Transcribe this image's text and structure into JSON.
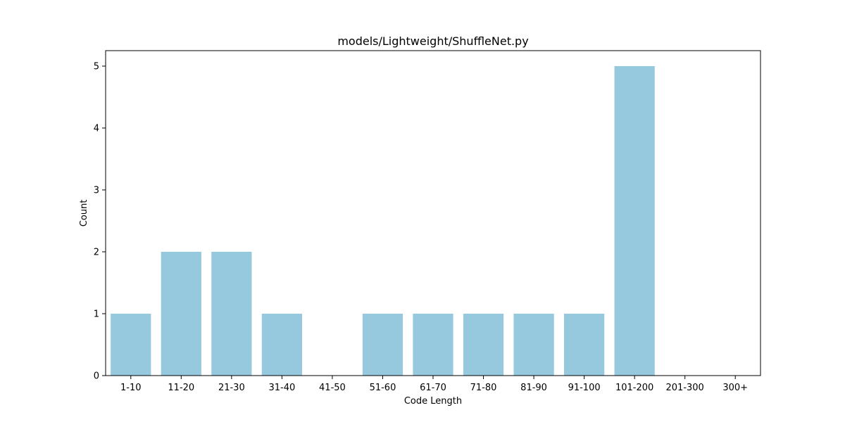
{
  "chart_data": {
    "type": "bar",
    "title": "models/Lightweight/ShuffleNet.py",
    "xlabel": "Code Length",
    "ylabel": "Count",
    "categories": [
      "1-10",
      "11-20",
      "21-30",
      "31-40",
      "41-50",
      "51-60",
      "61-70",
      "71-80",
      "81-90",
      "91-100",
      "101-200",
      "201-300",
      "300+"
    ],
    "values": [
      1,
      2,
      2,
      1,
      0,
      1,
      1,
      1,
      1,
      1,
      5,
      0,
      0
    ],
    "ylim": [
      0,
      5.25
    ],
    "yticks": [
      0,
      1,
      2,
      3,
      4,
      5
    ],
    "grid": false,
    "bar_color": "#96c9de"
  }
}
